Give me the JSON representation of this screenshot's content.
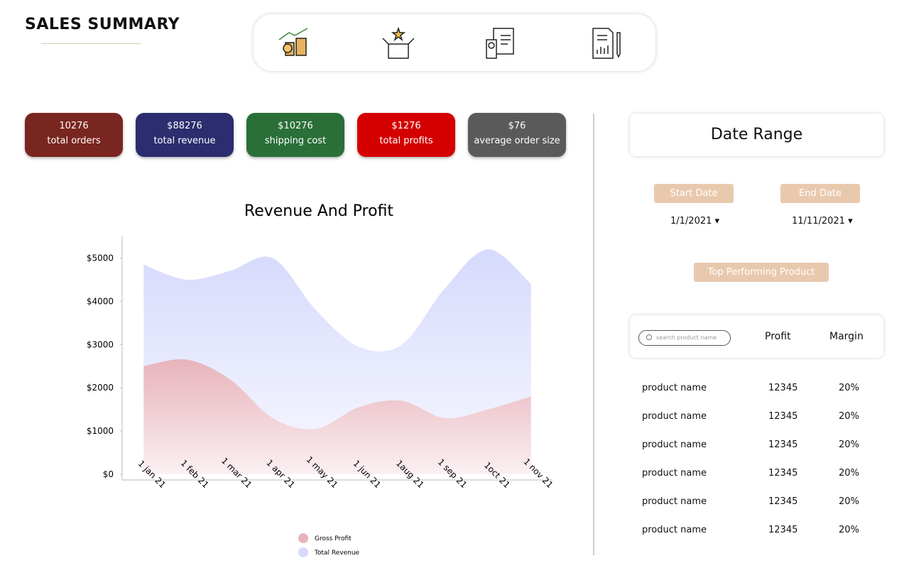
{
  "header": {
    "title": "SALES SUMMARY"
  },
  "kpis": [
    {
      "value": "10276",
      "label": "total orders",
      "color": "#7a2620"
    },
    {
      "value": "$88276",
      "label": "total revenue",
      "color": "#2b2d6e"
    },
    {
      "value": "$10276",
      "label": "shipping cost",
      "color": "#2a6f38"
    },
    {
      "value": "$1276",
      "label": "total profits",
      "color": "#d40000"
    },
    {
      "value": "$76",
      "label": "average order size",
      "color": "#5a5a5a"
    }
  ],
  "chart_data": {
    "type": "area",
    "title": "Revenue And Profit",
    "categories": [
      "1 jan 21",
      "1 feb 21",
      "1 mar 21",
      "1 apr 21",
      "1 may 21",
      "1 jun 21",
      "1aug 21",
      "1 sep 21",
      "1oct 21",
      "1 nov 21"
    ],
    "series": [
      {
        "name": "Total Revenue",
        "color": "#d6dafc",
        "values": [
          4850,
          4500,
          4700,
          5000,
          3800,
          2950,
          3000,
          4300,
          5200,
          4400
        ]
      },
      {
        "name": "Gross Profit",
        "color": "#e7b3bb",
        "values": [
          2500,
          2650,
          2200,
          1300,
          1050,
          1550,
          1700,
          1300,
          1500,
          1800
        ]
      }
    ],
    "ylim": [
      0,
      5500
    ],
    "yticks": [
      {
        "value": 0,
        "label": "$0"
      },
      {
        "value": 1000,
        "label": "$1000"
      },
      {
        "value": 2000,
        "label": "$2000"
      },
      {
        "value": 3000,
        "label": "$3000"
      },
      {
        "value": 4000,
        "label": "$4000"
      },
      {
        "value": 5000,
        "label": "$5000"
      }
    ]
  },
  "date_range": {
    "title": "Date Range",
    "start_label": "Start Date",
    "end_label": "End Date",
    "start": "1/1/2021",
    "end": "11/11/2021",
    "top_button": "Top Performing Product"
  },
  "table": {
    "search_placeholder": "search product name",
    "columns": [
      "Profit",
      "Margin"
    ],
    "rows": [
      [
        "product name",
        "12345",
        "20%"
      ],
      [
        "product name",
        "12345",
        "20%"
      ],
      [
        "product name",
        "12345",
        "20%"
      ],
      [
        "product name",
        "12345",
        "20%"
      ],
      [
        "product name",
        "12345",
        "20%"
      ],
      [
        "product name",
        "12345",
        "20%"
      ]
    ]
  }
}
